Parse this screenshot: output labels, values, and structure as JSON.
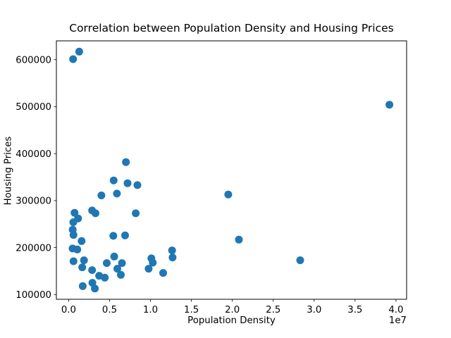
{
  "figure": {
    "background": "#ffffff",
    "marker_color": "#1f77b4",
    "axis_color": "#000000"
  },
  "chart_data": {
    "type": "scatter",
    "title": "Correlation between Population Density and Housing Prices",
    "xlabel": "Population Density",
    "ylabel": "Housing Prices",
    "x_offset_label": "1e7",
    "legend": "none",
    "grid": false,
    "xlim": [
      -1500000,
      41300000
    ],
    "ylim": [
      90000,
      640000
    ],
    "xticks": {
      "values": [
        0,
        5000000,
        10000000,
        15000000,
        20000000,
        25000000,
        30000000,
        35000000,
        40000000
      ],
      "labels": [
        "0.0",
        "0.5",
        "1.0",
        "1.5",
        "2.0",
        "2.5",
        "3.0",
        "3.5",
        "4.0"
      ]
    },
    "yticks": {
      "values": [
        100000,
        200000,
        300000,
        400000,
        500000,
        600000
      ],
      "labels": [
        "100000",
        "200000",
        "300000",
        "400000",
        "500000",
        "600000"
      ]
    },
    "points": [
      [
        540000,
        601000
      ],
      [
        1290000,
        617000
      ],
      [
        39200000,
        504000
      ],
      [
        19500000,
        313000
      ],
      [
        20800000,
        217000
      ],
      [
        28300000,
        173000
      ],
      [
        7000000,
        382000
      ],
      [
        5500000,
        343000
      ],
      [
        7200000,
        337000
      ],
      [
        8400000,
        333000
      ],
      [
        4000000,
        311000
      ],
      [
        5900000,
        315000
      ],
      [
        8200000,
        273000
      ],
      [
        2870000,
        279000
      ],
      [
        3280000,
        273000
      ],
      [
        720000,
        274000
      ],
      [
        1150000,
        262000
      ],
      [
        570000,
        254000
      ],
      [
        500000,
        238000
      ],
      [
        590000,
        227000
      ],
      [
        1580000,
        214000
      ],
      [
        5460000,
        225000
      ],
      [
        6900000,
        226000
      ],
      [
        480000,
        198000
      ],
      [
        1060000,
        196000
      ],
      [
        590000,
        171000
      ],
      [
        1880000,
        173000
      ],
      [
        1660000,
        158000
      ],
      [
        2870000,
        152000
      ],
      [
        5570000,
        181000
      ],
      [
        4660000,
        167000
      ],
      [
        6520000,
        167000
      ],
      [
        5950000,
        155000
      ],
      [
        6380000,
        142000
      ],
      [
        3730000,
        140000
      ],
      [
        4420000,
        136000
      ],
      [
        2900000,
        125000
      ],
      [
        1720000,
        118000
      ],
      [
        3200000,
        113000
      ],
      [
        10110000,
        177000
      ],
      [
        10280000,
        168000
      ],
      [
        9770000,
        155000
      ],
      [
        11550000,
        146000
      ],
      [
        12640000,
        194000
      ],
      [
        12700000,
        179000
      ]
    ]
  }
}
